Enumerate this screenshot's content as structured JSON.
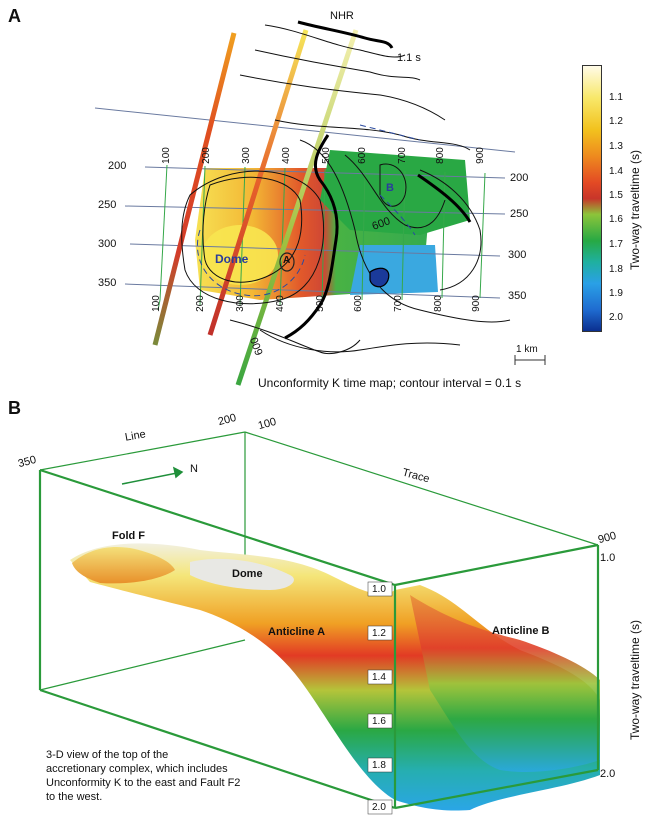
{
  "panel_a": {
    "letter": "A",
    "nhr_label": "NHR",
    "contour_top_label": "1.1 s",
    "contour_600_label": "600",
    "contour_bottom_label": "600",
    "dome_label": "Dome",
    "a_label": "A",
    "b_label": "B",
    "top_trace_ticks": [
      "100",
      "200",
      "300",
      "400",
      "500",
      "600",
      "700",
      "800",
      "900"
    ],
    "bottom_trace_ticks": [
      "100",
      "200",
      "300",
      "400",
      "500",
      "600",
      "700",
      "800",
      "900"
    ],
    "left_line_ticks": [
      "200",
      "250",
      "300",
      "350"
    ],
    "right_line_ticks": [
      "200",
      "250",
      "300",
      "350"
    ],
    "scale_label": "1 km",
    "caption": "Unconformity K time map; contour interval = 0.1 s"
  },
  "colorbar": {
    "title": "Two-way traveltime (s)",
    "ticks": [
      "1.1",
      "1.2",
      "1.3",
      "1.4",
      "1.5",
      "1.6",
      "1.7",
      "1.8",
      "1.9",
      "2.0"
    ],
    "colors": [
      "#fffbe8",
      "#f8e86a",
      "#f2c21e",
      "#ee8a1e",
      "#e34a24",
      "#c8352a",
      "#8cc43a",
      "#27a944",
      "#1fb0a0",
      "#2aa0e6",
      "#1f6bd0",
      "#0b2f8f"
    ]
  },
  "panel_b": {
    "letter": "B",
    "line_label": "Line",
    "trace_label": "Trace",
    "north_label": "N",
    "corner_350": "350",
    "corner_200": "200",
    "corner_100": "100",
    "corner_900": "900",
    "right_top_time": "1.0",
    "right_bottom_time": "2.0",
    "axis_title": "Two-way traveltime (s)",
    "fold_label": "Fold F",
    "dome_label": "Dome",
    "anticline_a": "Anticline A",
    "anticline_b": "Anticline B",
    "time_ticks": [
      "1.0",
      "1.2",
      "1.4",
      "1.6",
      "1.8",
      "2.0"
    ],
    "note_lines": [
      "3-D view of the top of the",
      "accretionary complex, which includes",
      "Unconformity K to the east and Fault F2",
      "to the west."
    ]
  }
}
